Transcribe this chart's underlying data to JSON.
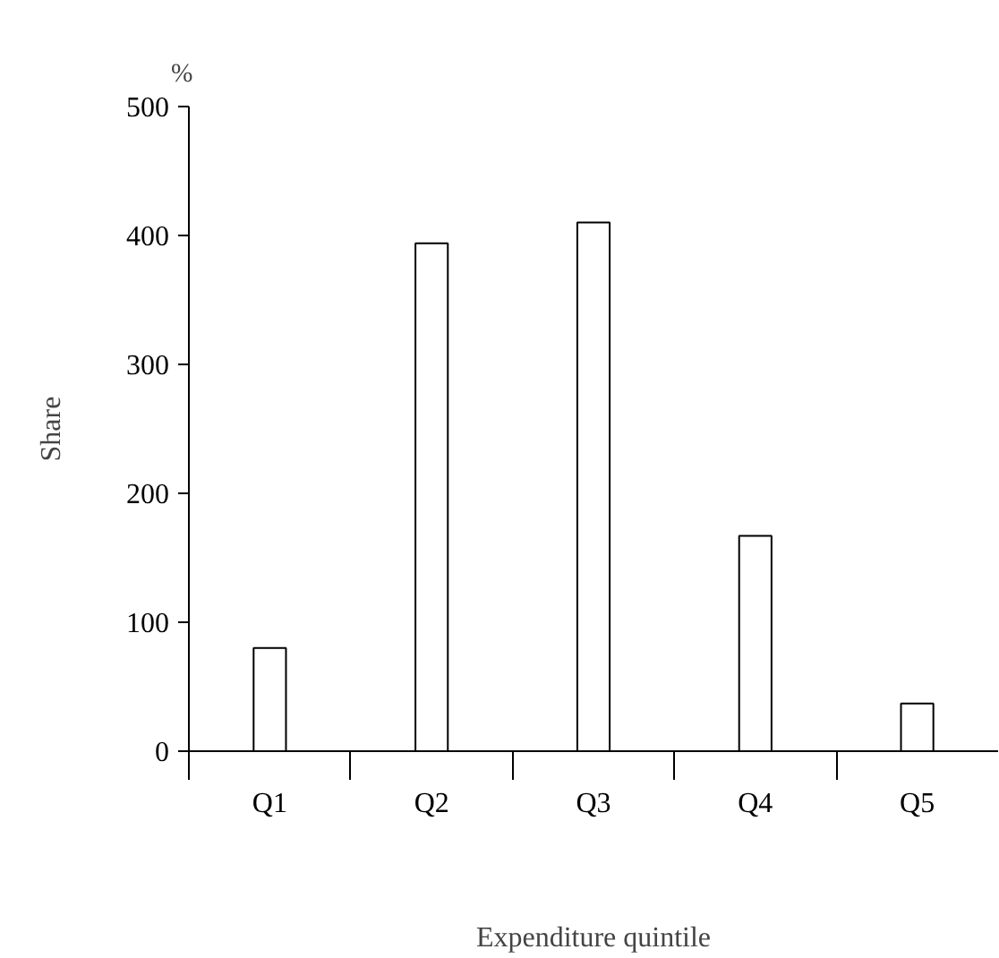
{
  "chart_data": {
    "type": "bar",
    "categories": [
      "Q1",
      "Q2",
      "Q3",
      "Q4",
      "Q5"
    ],
    "values": [
      80,
      394,
      410,
      167,
      37
    ],
    "color": "#ffffff",
    "ylim": [
      0,
      500
    ],
    "yticks": [
      0,
      100,
      200,
      300,
      400,
      500
    ],
    "xlabel": "Expenditure quintile",
    "ylabel": "Share",
    "annotations": [
      "%"
    ],
    "grid": false
  }
}
